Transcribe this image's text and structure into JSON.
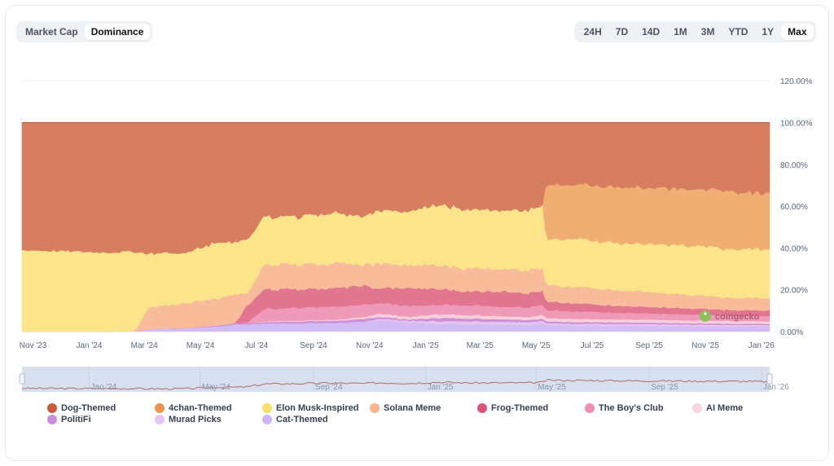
{
  "header": {
    "type_tabs": [
      {
        "label": "Market Cap",
        "active": false
      },
      {
        "label": "Dominance",
        "active": true
      }
    ],
    "range_tabs": [
      {
        "label": "24H",
        "active": false
      },
      {
        "label": "7D",
        "active": false
      },
      {
        "label": "14D",
        "active": false
      },
      {
        "label": "1M",
        "active": false
      },
      {
        "label": "3M",
        "active": false
      },
      {
        "label": "YTD",
        "active": false
      },
      {
        "label": "1Y",
        "active": false
      },
      {
        "label": "Max",
        "active": true
      }
    ]
  },
  "watermark": "coingecko",
  "chart_data": {
    "type": "area",
    "stacked": true,
    "title": "",
    "xlabel": "",
    "ylabel": "",
    "ylim": [
      0,
      120
    ],
    "y_ticks": [
      "0.00%",
      "20.00%",
      "40.00%",
      "60.00%",
      "80.00%",
      "100.00%",
      "120.00%"
    ],
    "x_ticks": [
      "Nov '23",
      "Jan '24",
      "Mar '24",
      "May '24",
      "Jul '24",
      "Sep '24",
      "Nov '24",
      "Jan '25",
      "Mar '25",
      "May '25",
      "Jul '25",
      "Sep '25",
      "Nov '25",
      "Jan '26"
    ],
    "grid": true,
    "legend_position": "bottom",
    "x": [
      "2023-10-20",
      "2023-10-28",
      "2024-01-15",
      "2024-02-20",
      "2024-03-05",
      "2024-04-15",
      "2024-05-20",
      "2024-06-08",
      "2024-06-20",
      "2024-07-10",
      "2024-08-15",
      "2024-09-20",
      "2024-10-25",
      "2024-11-10",
      "2024-12-15",
      "2025-01-15",
      "2025-02-20",
      "2025-03-25",
      "2025-04-25",
      "2025-05-08",
      "2025-05-12",
      "2025-06-20",
      "2025-08-01",
      "2025-09-15",
      "2025-10-20",
      "2025-11-20",
      "2025-12-20",
      "2026-01-10"
    ],
    "series": [
      {
        "name": "Cat-Themed",
        "color": "#d3bbf5",
        "values": [
          0,
          0,
          0,
          0.3,
          1.2,
          1.8,
          2.5,
          3.5,
          3.6,
          3.8,
          4,
          4.2,
          4.5,
          5.5,
          4.2,
          3.8,
          3.5,
          3.5,
          3.4,
          3.8,
          3,
          2.8,
          2.7,
          2.6,
          2.5,
          2.4,
          2.4,
          2.4
        ]
      },
      {
        "name": "Murad Picks",
        "color": "#e5c4ee",
        "values": [
          0,
          0,
          0,
          0,
          0,
          0,
          0,
          0,
          0,
          0,
          0,
          0,
          0,
          0.8,
          1,
          1.2,
          1.5,
          1.3,
          1.2,
          1.4,
          1,
          1,
          1,
          0.9,
          0.9,
          0.9,
          0.8,
          0.8
        ]
      },
      {
        "name": "PolitiFi",
        "color": "#cd8fd9",
        "values": [
          0,
          0,
          0,
          0,
          0,
          0,
          0.4,
          0.6,
          0.6,
          0.8,
          0.9,
          1,
          1.4,
          0.9,
          0.6,
          1.6,
          1.3,
          1.2,
          1.1,
          1,
          0.9,
          0.8,
          0.7,
          0.7,
          0.6,
          0.6,
          0.6,
          0.6
        ]
      },
      {
        "name": "AI Meme",
        "color": "#f8d0dc",
        "values": [
          0,
          0,
          0,
          0,
          0,
          0,
          0,
          0,
          0,
          0.3,
          0.4,
          0.5,
          0.8,
          1.6,
          1.2,
          1.8,
          1.6,
          1.5,
          1.4,
          2,
          1.6,
          1.5,
          1.4,
          1.4,
          1.3,
          1.3,
          1.2,
          1.2
        ]
      },
      {
        "name": "The Boy's Club",
        "color": "#f09ab9",
        "values": [
          0,
          0,
          0,
          0,
          0,
          0,
          0,
          0,
          0,
          6,
          6.2,
          6.3,
          6.2,
          5,
          5.2,
          4.5,
          4.8,
          4.5,
          4.6,
          4.8,
          3.8,
          3.5,
          3.2,
          3,
          2.8,
          2.6,
          2.5,
          2.5
        ]
      },
      {
        "name": "Frog-Themed",
        "color": "#e2758f",
        "values": [
          0,
          0,
          0,
          0,
          0,
          0,
          0,
          0,
          8,
          9.5,
          9,
          8.8,
          9,
          7,
          8.5,
          7.5,
          6.5,
          7.5,
          6.8,
          6.5,
          4,
          3.8,
          3.2,
          3,
          2.8,
          2.7,
          2.7,
          2.7
        ]
      },
      {
        "name": "Solana Meme",
        "color": "#f9bc9a",
        "values": [
          0,
          0,
          0,
          0,
          10,
          12,
          13,
          14,
          6,
          12,
          12,
          12,
          10,
          12,
          11,
          11.5,
          11,
          11,
          11,
          11,
          8,
          8,
          7.5,
          7,
          6.5,
          6,
          6,
          5.8
        ]
      },
      {
        "name": "Elon Musk-Inspired",
        "color": "#fbe48a",
        "values": [
          39,
          39,
          38,
          38,
          26,
          24,
          27,
          25,
          26,
          23,
          23,
          24,
          23,
          25,
          26,
          29,
          28,
          28,
          29,
          30,
          22,
          23,
          22.5,
          23,
          23.5,
          23.5,
          23.5,
          23
        ]
      },
      {
        "name": "4chan-Themed",
        "color": "#f0ae73",
        "values": [
          0,
          0,
          0,
          0,
          0,
          0,
          0,
          0,
          0,
          0,
          0,
          0,
          0,
          0,
          0,
          0,
          0,
          0,
          0,
          0,
          26,
          26,
          27,
          27,
          27,
          27.5,
          27,
          27
        ]
      },
      {
        "name": "Dog-Themed",
        "color": "#d67e5f",
        "values": [
          61,
          61,
          62,
          61.7,
          62.8,
          62.2,
          57.1,
          56.9,
          55.8,
          44.6,
          43.5,
          41.2,
          43.1,
          40.2,
          42.3,
          38.1,
          40.8,
          40.5,
          40.5,
          38.5,
          30.7,
          31.6,
          32.8,
          33.4,
          34.1,
          34.5,
          35.3,
          36
        ]
      }
    ],
    "navigator": {
      "x_ticks": [
        "Jan '24",
        "May '24",
        "Sep '24",
        "Jan '25",
        "May '25",
        "Sep '25",
        "Jan '26"
      ]
    }
  },
  "legend": [
    {
      "label": "Dog-Themed",
      "color": "#c8593b"
    },
    {
      "label": "4chan-Themed",
      "color": "#ea9550"
    },
    {
      "label": "Elon Musk-Inspired",
      "color": "#f8df6a"
    },
    {
      "label": "Solana Meme",
      "color": "#f7b48a"
    },
    {
      "label": "Frog-Themed",
      "color": "#db5577"
    },
    {
      "label": "The Boy's Club",
      "color": "#ee8fb1"
    },
    {
      "label": "AI Meme",
      "color": "#fad3de"
    },
    {
      "label": "PolitiFi",
      "color": "#c98cd8"
    },
    {
      "label": "Murad Picks",
      "color": "#e5c6f0"
    },
    {
      "label": "Cat-Themed",
      "color": "#cdb3f7"
    }
  ]
}
